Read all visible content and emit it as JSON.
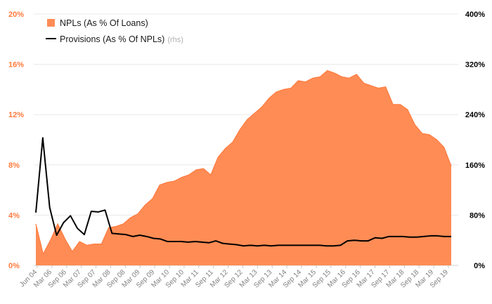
{
  "chart_data": {
    "type": "area",
    "title": "",
    "xlabel": "",
    "ylabel": "",
    "y_left": {
      "lim": [
        0,
        20
      ],
      "ticks": [
        "0%",
        "4%",
        "8%",
        "12%",
        "16%",
        "20%"
      ],
      "ticks_values": [
        0,
        4,
        8,
        12,
        16,
        20
      ]
    },
    "y_right": {
      "lim": [
        0,
        400
      ],
      "ticks": [
        "0%",
        "80%",
        "160%",
        "240%",
        "320%",
        "400%"
      ],
      "ticks_values": [
        0,
        80,
        160,
        240,
        320,
        400
      ]
    },
    "grid": true,
    "legend_position": "top-left",
    "x_tick_labels": [
      "Jun 04",
      "Mar 06",
      "Sep 06",
      "Mar 07",
      "Sep 07",
      "Mar 08",
      "Sep 08",
      "Mar 09",
      "Sep 09",
      "Mar 10",
      "Sep 10",
      "Mar 11",
      "Sep 11",
      "Mar 12",
      "Sep 12",
      "Mar 13",
      "Sep 13",
      "Mar 14",
      "Sep 14",
      "Mar 15",
      "Sep 15",
      "Mar 16",
      "Sep 16",
      "Mar 17",
      "Sep 17",
      "Mar 18",
      "Sep 18",
      "Mar 19",
      "Sep 19"
    ],
    "series": [
      {
        "name": "NPLs (As % Of Loans)",
        "axis": "left",
        "kind": "area",
        "color": "#ff8c55",
        "edge_color": "#ff7a3d",
        "values": [
          3.3,
          0.9,
          2.0,
          3.3,
          2.1,
          1.1,
          1.9,
          1.6,
          1.7,
          1.7,
          3.0,
          3.1,
          3.3,
          3.8,
          4.1,
          4.8,
          5.3,
          6.4,
          6.6,
          6.7,
          7.0,
          7.2,
          7.6,
          7.7,
          7.2,
          8.6,
          9.3,
          9.8,
          10.8,
          11.6,
          12.1,
          12.6,
          13.3,
          13.8,
          14.0,
          14.1,
          14.7,
          14.6,
          14.9,
          15.0,
          15.5,
          15.3,
          15.0,
          14.9,
          15.2,
          14.5,
          14.3,
          14.1,
          14.2,
          12.8,
          12.8,
          12.4,
          11.2,
          10.5,
          10.4,
          10.0,
          9.4,
          7.9
        ]
      },
      {
        "name": "Provisions (As % Of NPLs)",
        "axis": "right",
        "kind": "line",
        "suffix": "(rhs)",
        "color": "#000000",
        "values": [
          84,
          203,
          92,
          48,
          68,
          79,
          59,
          49,
          86,
          85,
          88,
          51,
          50,
          49,
          46,
          48,
          46,
          43,
          42,
          38,
          38,
          38,
          37,
          38,
          37,
          36,
          39,
          35,
          34,
          33,
          31,
          32,
          31,
          32,
          31,
          32,
          32,
          32,
          32,
          32,
          32,
          32,
          31,
          31,
          32,
          39,
          40,
          39,
          39,
          44,
          43,
          46,
          46,
          46,
          45,
          45,
          46,
          47,
          47,
          46,
          46
        ]
      }
    ]
  }
}
